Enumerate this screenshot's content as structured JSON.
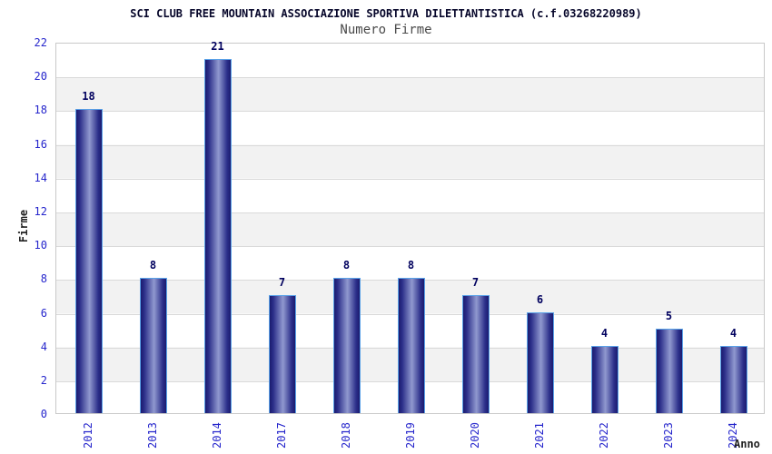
{
  "chart": {
    "title": "SCI CLUB FREE MOUNTAIN ASSOCIAZIONE SPORTIVA DILETTANTISTICA (c.f.03268220989)",
    "subtitle": "Numero Firme",
    "ylabel": "Firme",
    "xlabel": "Anno"
  },
  "chart_data": {
    "type": "bar",
    "title": "SCI CLUB FREE MOUNTAIN ASSOCIAZIONE SPORTIVA DILETTANTISTICA (c.f.03268220989)",
    "subtitle": "Numero Firme",
    "xlabel": "Anno",
    "ylabel": "Firme",
    "categories": [
      "2012",
      "2013",
      "2014",
      "2017",
      "2018",
      "2019",
      "2020",
      "2021",
      "2022",
      "2023",
      "2024"
    ],
    "values": [
      18,
      8,
      21,
      7,
      8,
      8,
      7,
      6,
      4,
      5,
      4
    ],
    "ylim": [
      0,
      22
    ],
    "ytick_step": 2,
    "grid": true,
    "legend": false,
    "banded_background": true,
    "colors": {
      "bar_dark": "#1b1b6f",
      "bar_mid": "#2c2f8a",
      "bar_light": "#9099cf",
      "bar_border": "#5aa2e8",
      "tick_label": "#2626cc",
      "value_label": "#00005e",
      "title": "#06062a",
      "subtitle": "#4a4a4a",
      "band_gray": "#f2f2f2",
      "gridline": "#d9d9d9"
    }
  }
}
